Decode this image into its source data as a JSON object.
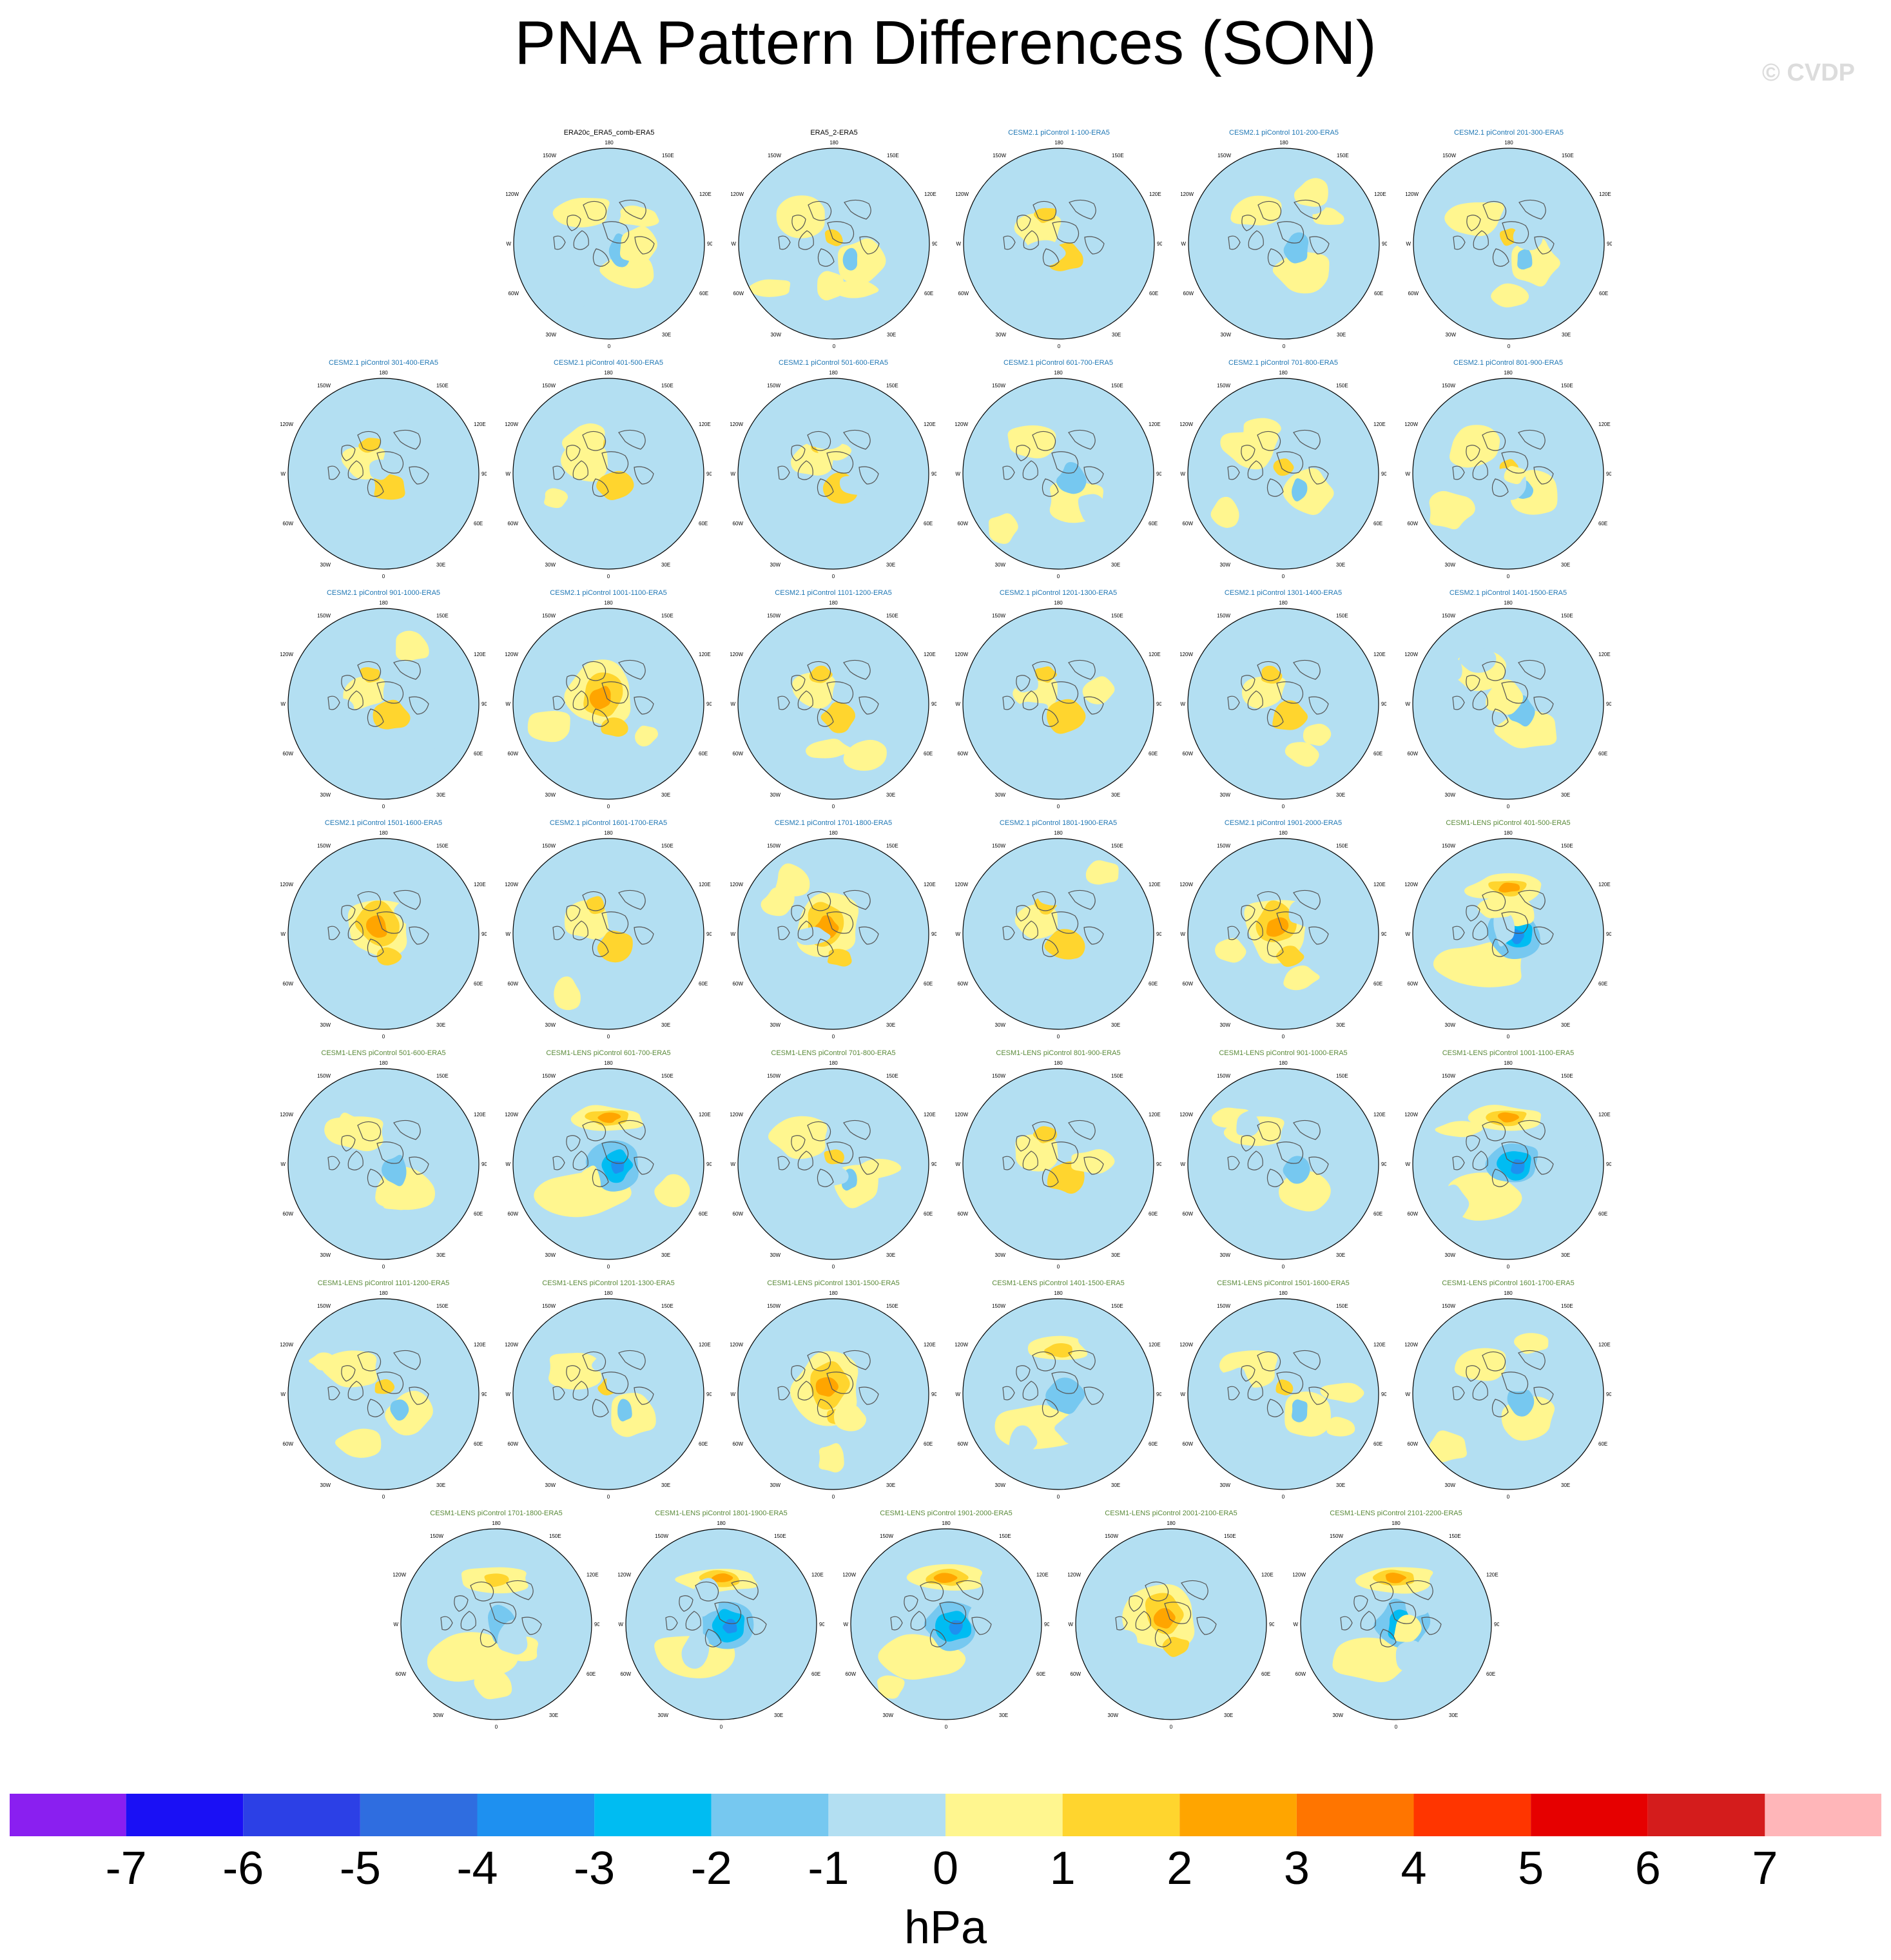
{
  "title": "PNA Pattern Differences (SON)",
  "watermark": "© CVDP",
  "polar_ticks": {
    "top": "180",
    "bottom": "0",
    "upper_left": "150W",
    "upper_right": "150E",
    "mid_upper_left": "120W",
    "mid_upper_right": "120E",
    "left": "90W",
    "right": "90E",
    "mid_lower_left": "60W",
    "mid_lower_right": "60E",
    "lower_left": "30W",
    "lower_right": "30E"
  },
  "colors": {
    "title_obs": "#000000",
    "title_cesm2": "#1f77b4",
    "title_cesm1": "#5a8a3a",
    "land_outline": "#555555"
  },
  "panel_rows": [
    [
      {
        "title": "ERA20c_ERA5_comb-ERA5",
        "group": "obs",
        "pattern": "weak-neg"
      },
      {
        "title": "ERA5_2-ERA5",
        "group": "obs",
        "pattern": "weak-mixed"
      },
      {
        "title": "CESM2.1 piControl 1-100-ERA5",
        "group": "cesm2",
        "pattern": "weak-pos"
      },
      {
        "title": "CESM2.1 piControl 101-200-ERA5",
        "group": "cesm2",
        "pattern": "weak-neg"
      },
      {
        "title": "CESM2.1 piControl 201-300-ERA5",
        "group": "cesm2",
        "pattern": "weak-mixed"
      }
    ],
    [
      {
        "title": "CESM2.1 piControl 301-400-ERA5",
        "group": "cesm2",
        "pattern": "weak-pos"
      },
      {
        "title": "CESM2.1 piControl 401-500-ERA5",
        "group": "cesm2",
        "pattern": "weak-pos"
      },
      {
        "title": "CESM2.1 piControl 501-600-ERA5",
        "group": "cesm2",
        "pattern": "weak-pos"
      },
      {
        "title": "CESM2.1 piControl 601-700-ERA5",
        "group": "cesm2",
        "pattern": "weak-neg"
      },
      {
        "title": "CESM2.1 piControl 701-800-ERA5",
        "group": "cesm2",
        "pattern": "weak-mixed"
      },
      {
        "title": "CESM2.1 piControl 801-900-ERA5",
        "group": "cesm2",
        "pattern": "weak-mixed"
      }
    ],
    [
      {
        "title": "CESM2.1 piControl 901-1000-ERA5",
        "group": "cesm2",
        "pattern": "weak-pos"
      },
      {
        "title": "CESM2.1 piControl 1001-1100-ERA5",
        "group": "cesm2",
        "pattern": "pos"
      },
      {
        "title": "CESM2.1 piControl 1101-1200-ERA5",
        "group": "cesm2",
        "pattern": "weak-pos"
      },
      {
        "title": "CESM2.1 piControl 1201-1300-ERA5",
        "group": "cesm2",
        "pattern": "weak-pos"
      },
      {
        "title": "CESM2.1 piControl 1301-1400-ERA5",
        "group": "cesm2",
        "pattern": "weak-pos"
      },
      {
        "title": "CESM2.1 piControl 1401-1500-ERA5",
        "group": "cesm2",
        "pattern": "weak-neg"
      }
    ],
    [
      {
        "title": "CESM2.1 piControl 1501-1600-ERA5",
        "group": "cesm2",
        "pattern": "pos"
      },
      {
        "title": "CESM2.1 piControl 1601-1700-ERA5",
        "group": "cesm2",
        "pattern": "weak-pos"
      },
      {
        "title": "CESM2.1 piControl 1701-1800-ERA5",
        "group": "cesm2",
        "pattern": "pos"
      },
      {
        "title": "CESM2.1 piControl 1801-1900-ERA5",
        "group": "cesm2",
        "pattern": "weak-pos"
      },
      {
        "title": "CESM2.1 piControl 1901-2000-ERA5",
        "group": "cesm2",
        "pattern": "pos"
      },
      {
        "title": "CESM1-LENS piControl 401-500-ERA5",
        "group": "cesm1",
        "pattern": "dipole"
      }
    ],
    [
      {
        "title": "CESM1-LENS piControl 501-600-ERA5",
        "group": "cesm1",
        "pattern": "weak-neg"
      },
      {
        "title": "CESM1-LENS piControl 601-700-ERA5",
        "group": "cesm1",
        "pattern": "dipole"
      },
      {
        "title": "CESM1-LENS piControl 701-800-ERA5",
        "group": "cesm1",
        "pattern": "weak-mixed"
      },
      {
        "title": "CESM1-LENS piControl 801-900-ERA5",
        "group": "cesm1",
        "pattern": "weak-pos"
      },
      {
        "title": "CESM1-LENS piControl 901-1000-ERA5",
        "group": "cesm1",
        "pattern": "weak-neg"
      },
      {
        "title": "CESM1-LENS piControl 1001-1100-ERA5",
        "group": "cesm1",
        "pattern": "dipole"
      }
    ],
    [
      {
        "title": "CESM1-LENS piControl 1101-1200-ERA5",
        "group": "cesm1",
        "pattern": "weak-mixed"
      },
      {
        "title": "CESM1-LENS piControl 1201-1300-ERA5",
        "group": "cesm1",
        "pattern": "weak-mixed"
      },
      {
        "title": "CESM1-LENS piControl 1301-1500-ERA5",
        "group": "cesm1",
        "pattern": "pos"
      },
      {
        "title": "CESM1-LENS piControl 1401-1500-ERA5",
        "group": "cesm1",
        "pattern": "weak-dipole"
      },
      {
        "title": "CESM1-LENS piControl 1501-1600-ERA5",
        "group": "cesm1",
        "pattern": "weak-mixed"
      },
      {
        "title": "CESM1-LENS piControl 1601-1700-ERA5",
        "group": "cesm1",
        "pattern": "weak-neg"
      }
    ],
    [
      {
        "title": "CESM1-LENS piControl 1701-1800-ERA5",
        "group": "cesm1",
        "pattern": "weak-dipole"
      },
      {
        "title": "CESM1-LENS piControl 1801-1900-ERA5",
        "group": "cesm1",
        "pattern": "dipole"
      },
      {
        "title": "CESM1-LENS piControl 1901-2000-ERA5",
        "group": "cesm1",
        "pattern": "dipole"
      },
      {
        "title": "CESM1-LENS piControl 2001-2100-ERA5",
        "group": "cesm1",
        "pattern": "pos"
      },
      {
        "title": "CESM1-LENS piControl 2101-2200-ERA5",
        "group": "cesm1",
        "pattern": "dipole"
      }
    ]
  ],
  "chart_data": {
    "type": "heatmap",
    "title": "PNA Pattern Differences (SON)",
    "colorbar": {
      "units": "hPa",
      "levels": [
        -7,
        -6,
        -5,
        -4,
        -3,
        -2,
        -1,
        0,
        1,
        2,
        3,
        4,
        5,
        6,
        7
      ],
      "tick_labels": [
        "-7",
        "-6",
        "-5",
        "-4",
        "-3",
        "-2",
        "-1",
        "0",
        "1",
        "2",
        "3",
        "4",
        "5",
        "6",
        "7"
      ],
      "colors": [
        "#8a1ff0",
        "#1a10f5",
        "#2c40e6",
        "#2f6de0",
        "#1e90f0",
        "#00bcf2",
        "#76c8f0",
        "#b3dff2",
        "#fff68f",
        "#ffd52e",
        "#ffa500",
        "#ff7500",
        "#ff3500",
        "#e60000",
        "#d41c1c",
        "#ffb6b9"
      ]
    }
  }
}
